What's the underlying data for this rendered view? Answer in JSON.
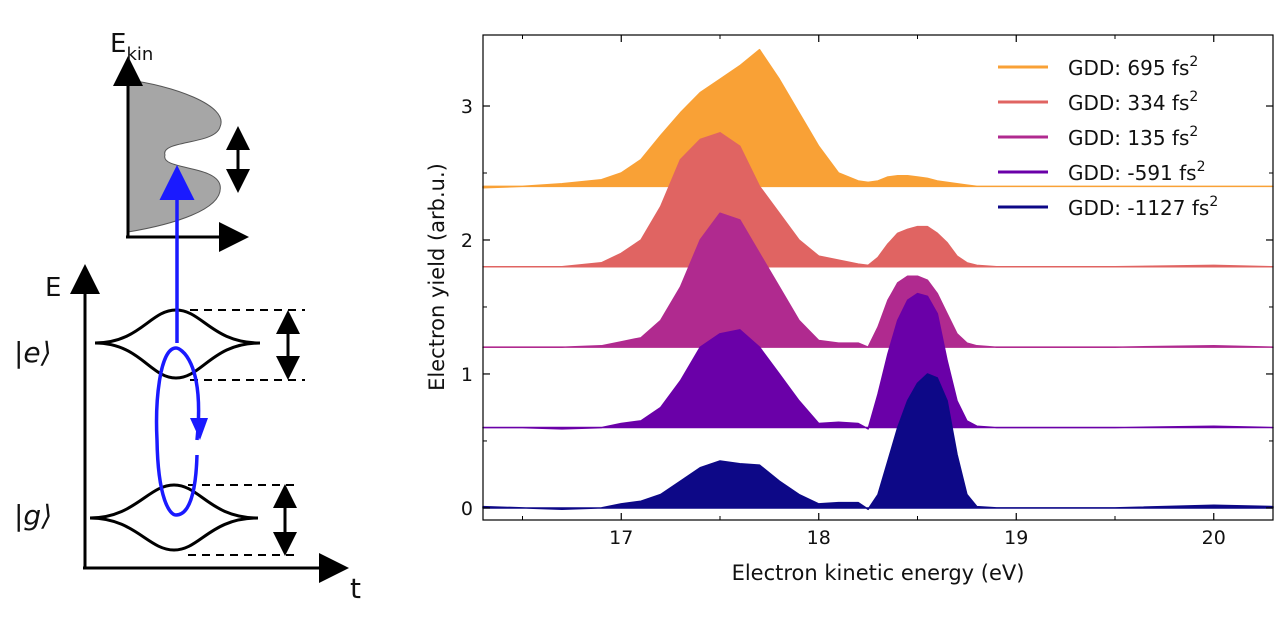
{
  "diagram": {
    "ekin_label_main": "E",
    "ekin_label_sub": "kin",
    "energy_axis_label": "E",
    "time_axis_label": "t",
    "excited_state_label": "|e⟩",
    "ground_state_label": "|g⟩",
    "colors": {
      "excitation": "#1a1aff",
      "distribution": "#a6a6a6"
    }
  },
  "chart_data": {
    "type": "area",
    "title": "",
    "xlabel": "Electron kinetic energy (eV)",
    "ylabel": "Electron yield (arb.u.)",
    "xlim": [
      16.3,
      20.3
    ],
    "ylim": [
      -0.09,
      3.53
    ],
    "xticks": [
      17,
      18,
      19,
      20
    ],
    "yticks": [
      0,
      1,
      2,
      3
    ],
    "grid": false,
    "legend_position": "top-right",
    "x": [
      16.3,
      16.5,
      16.7,
      16.9,
      17.0,
      17.1,
      17.2,
      17.3,
      17.4,
      17.5,
      17.6,
      17.7,
      17.8,
      17.9,
      18.0,
      18.1,
      18.2,
      18.25,
      18.3,
      18.35,
      18.4,
      18.45,
      18.5,
      18.55,
      18.6,
      18.65,
      18.7,
      18.75,
      18.8,
      18.9,
      19.0,
      19.5,
      20.0,
      20.3
    ],
    "series": [
      {
        "name": "GDD: 695 fs²",
        "color": "#f9a136",
        "offset": 2.4,
        "values": [
          -0.01,
          0,
          0.02,
          0.05,
          0.1,
          0.2,
          0.38,
          0.55,
          0.7,
          0.8,
          0.9,
          1.02,
          0.8,
          0.55,
          0.3,
          0.1,
          0.04,
          0.03,
          0.04,
          0.07,
          0.08,
          0.08,
          0.07,
          0.06,
          0.04,
          0.03,
          0.02,
          0.01,
          0,
          0,
          0,
          0,
          0,
          0
        ]
      },
      {
        "name": "GDD: 334 fs²",
        "color": "#e06462",
        "offset": 1.8,
        "values": [
          0,
          0,
          0,
          0.03,
          0.1,
          0.2,
          0.45,
          0.8,
          0.95,
          1.0,
          0.9,
          0.6,
          0.4,
          0.2,
          0.08,
          0.05,
          0.02,
          0.01,
          0.07,
          0.17,
          0.25,
          0.28,
          0.3,
          0.3,
          0.25,
          0.18,
          0.08,
          0.03,
          0.01,
          0,
          0,
          0,
          0.01,
          0
        ]
      },
      {
        "name": "GDD: 135 fs²",
        "color": "#b02a8f",
        "offset": 1.2,
        "values": [
          0,
          0,
          0,
          0.01,
          0.04,
          0.07,
          0.2,
          0.45,
          0.8,
          1.0,
          0.95,
          0.7,
          0.45,
          0.2,
          0.05,
          0.03,
          0.03,
          0,
          0.15,
          0.35,
          0.48,
          0.53,
          0.53,
          0.5,
          0.4,
          0.25,
          0.1,
          0.03,
          0.01,
          0,
          0,
          0,
          0.01,
          0
        ]
      },
      {
        "name": "GDD: -591 fs²",
        "color": "#6a00a8",
        "offset": 0.6,
        "values": [
          0,
          0,
          -0.01,
          0,
          0.03,
          0.05,
          0.15,
          0.35,
          0.6,
          0.7,
          0.73,
          0.6,
          0.4,
          0.2,
          0.03,
          0.04,
          0.03,
          -0.01,
          0.25,
          0.55,
          0.8,
          0.95,
          1.0,
          0.98,
          0.85,
          0.5,
          0.2,
          0.05,
          0.01,
          0,
          0,
          0,
          0.01,
          0
        ]
      },
      {
        "name": "GDD: -1127 fs²",
        "color": "#0d0887",
        "offset": 0,
        "values": [
          0.01,
          0,
          -0.01,
          0,
          0.03,
          0.05,
          0.1,
          0.2,
          0.3,
          0.35,
          0.33,
          0.32,
          0.2,
          0.1,
          0.03,
          0.04,
          0.04,
          -0.01,
          0.1,
          0.35,
          0.6,
          0.8,
          0.93,
          1.0,
          0.97,
          0.8,
          0.4,
          0.1,
          0.01,
          0,
          0,
          0,
          0.02,
          0.01
        ]
      }
    ]
  }
}
